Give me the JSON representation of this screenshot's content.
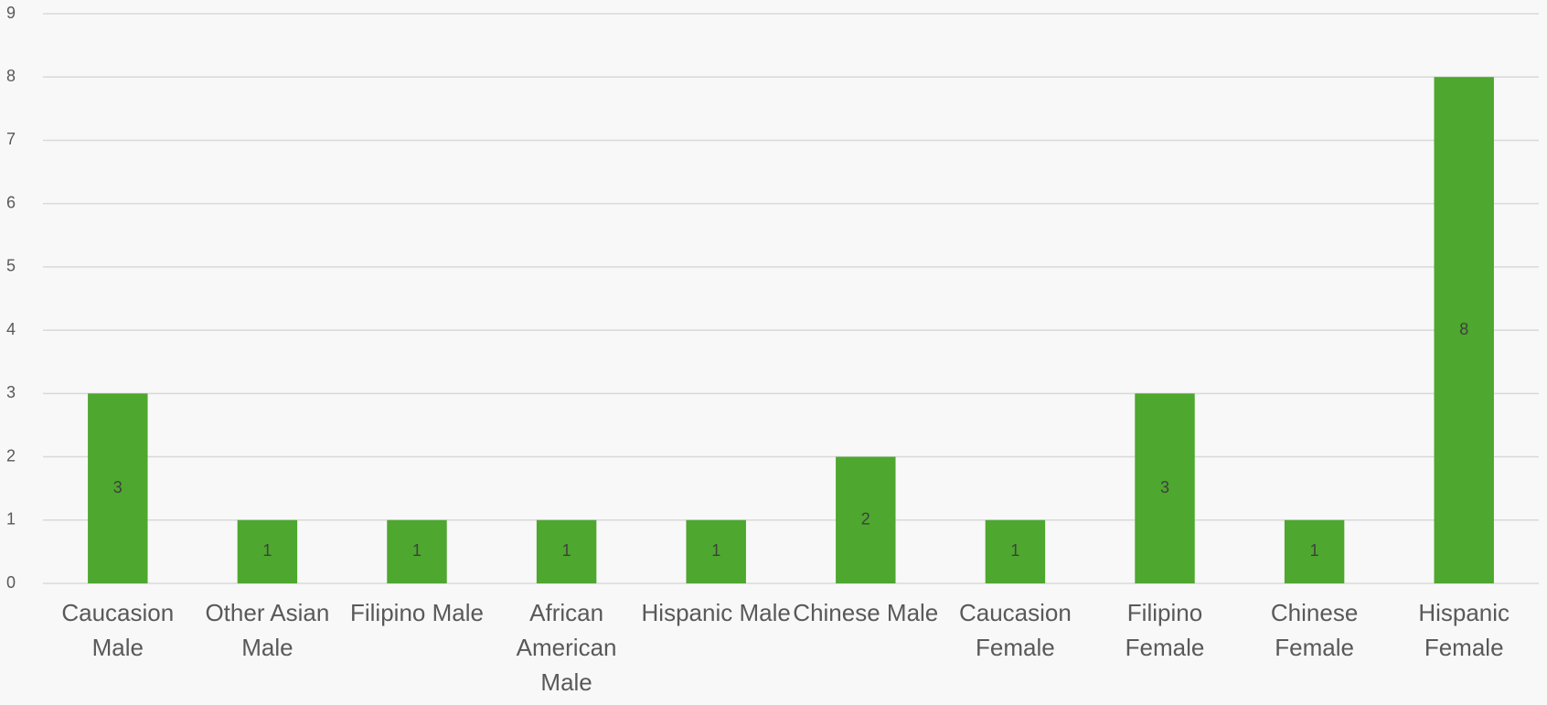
{
  "chart_data": {
    "type": "bar",
    "categories": [
      "Caucasion Male",
      "Other Asian Male",
      "Filipino Male",
      "African American Male",
      "Hispanic Male",
      "Chinese Male",
      "Caucasion Female",
      "Filipino Female",
      "Chinese Female",
      "Hispanic Female"
    ],
    "values": [
      3,
      1,
      1,
      1,
      1,
      2,
      1,
      3,
      1,
      8
    ],
    "color": "#4ea72e",
    "ylim": [
      0,
      9
    ],
    "yticks": [
      0,
      1,
      2,
      3,
      4,
      5,
      6,
      7,
      8,
      9
    ],
    "grid": true
  }
}
